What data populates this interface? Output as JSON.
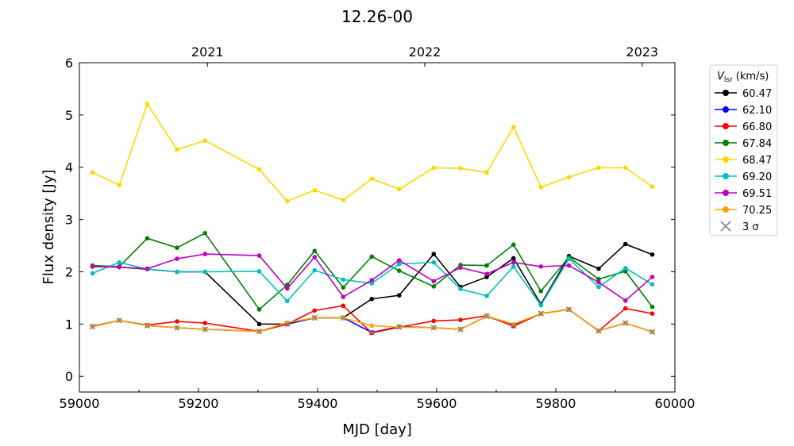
{
  "chart_data": {
    "type": "line",
    "title": "12.26-00",
    "xlabel": "MJD [day]",
    "ylabel": "Flux density [Jy]",
    "xlim": [
      59000,
      60000
    ],
    "ylim": [
      -0.3,
      6.0
    ],
    "xticks": [
      59000,
      59200,
      59400,
      59600,
      59800,
      60000
    ],
    "yticks": [
      0,
      1,
      2,
      3,
      4,
      5,
      6
    ],
    "top_axis_years": [
      {
        "label": "2021",
        "mjd": 59215
      },
      {
        "label": "2022",
        "mjd": 59580
      },
      {
        "label": "2023",
        "mjd": 59945
      }
    ],
    "legend": {
      "title_main": "V",
      "title_sub": "lsr",
      "title_unit": "(km/s)",
      "placement": "outside-right",
      "sigma_label": "3 σ"
    },
    "x": [
      59022,
      59067,
      59114,
      59164,
      59211,
      59302,
      59349,
      59395,
      59443,
      59491,
      59537,
      59595,
      59640,
      59684,
      59729,
      59775,
      59822,
      59872,
      59917,
      59962
    ],
    "series": [
      {
        "name": "60.47",
        "color": "#000000",
        "values": [
          2.1,
          2.09,
          2.05,
          2.0,
          2.0,
          1.0,
          1.0,
          1.12,
          1.12,
          1.48,
          1.55,
          2.34,
          1.71,
          1.9,
          2.26,
          1.38,
          2.3,
          2.06,
          2.53,
          2.33
        ]
      },
      {
        "name": "62.10",
        "color": "#0000ff",
        "values": [
          0.95,
          1.07,
          0.97,
          0.93,
          0.9,
          0.86,
          1.0,
          1.12,
          1.12,
          0.84,
          0.95,
          0.93,
          0.9,
          1.15,
          0.97,
          1.2,
          1.28,
          0.87,
          1.02,
          0.85
        ]
      },
      {
        "name": "66.80",
        "color": "#ff0000",
        "values": [
          0.96,
          1.07,
          0.98,
          1.05,
          1.02,
          0.86,
          1.0,
          1.26,
          1.35,
          0.83,
          0.94,
          1.06,
          1.08,
          1.16,
          0.96,
          1.2,
          1.28,
          0.87,
          1.3,
          1.2
        ]
      },
      {
        "name": "67.84",
        "color": "#008000",
        "values": [
          2.12,
          2.1,
          2.64,
          2.46,
          2.74,
          1.28,
          1.75,
          2.4,
          1.7,
          2.29,
          2.02,
          1.72,
          2.13,
          2.12,
          2.52,
          1.63,
          2.28,
          1.86,
          2.01,
          1.33
        ]
      },
      {
        "name": "68.47",
        "color": "#ffd700",
        "values": [
          3.9,
          3.66,
          5.21,
          4.34,
          4.51,
          3.96,
          3.35,
          3.56,
          3.37,
          3.78,
          3.58,
          3.99,
          3.98,
          3.9,
          4.77,
          3.62,
          3.81,
          3.99,
          3.99,
          3.63
        ]
      },
      {
        "name": "69.20",
        "color": "#00bfbf",
        "values": [
          1.97,
          2.18,
          2.05,
          2.0,
          2.0,
          2.01,
          1.44,
          2.03,
          1.85,
          1.78,
          2.15,
          2.18,
          1.67,
          1.54,
          2.1,
          1.36,
          2.25,
          1.71,
          2.07,
          1.76
        ]
      },
      {
        "name": "69.51",
        "color": "#bf00bf",
        "values": [
          2.1,
          2.09,
          2.06,
          2.25,
          2.34,
          2.31,
          1.68,
          2.28,
          1.52,
          1.84,
          2.22,
          1.82,
          2.08,
          1.96,
          2.18,
          2.1,
          2.12,
          1.8,
          1.45,
          1.9
        ]
      },
      {
        "name": "70.25",
        "color": "#ffa500",
        "values": [
          0.95,
          1.07,
          0.97,
          0.93,
          0.9,
          0.86,
          1.03,
          1.12,
          1.12,
          0.97,
          0.94,
          0.93,
          0.9,
          1.15,
          1.0,
          1.2,
          1.28,
          0.87,
          1.02,
          0.85
        ]
      }
    ],
    "sigma3": {
      "color": "#808080",
      "values": [
        0.95,
        1.07,
        0.97,
        0.93,
        0.9,
        0.86,
        1.0,
        1.12,
        1.12,
        0.84,
        0.94,
        0.93,
        0.9,
        1.15,
        0.97,
        1.2,
        1.28,
        0.87,
        1.02,
        0.85
      ]
    }
  }
}
